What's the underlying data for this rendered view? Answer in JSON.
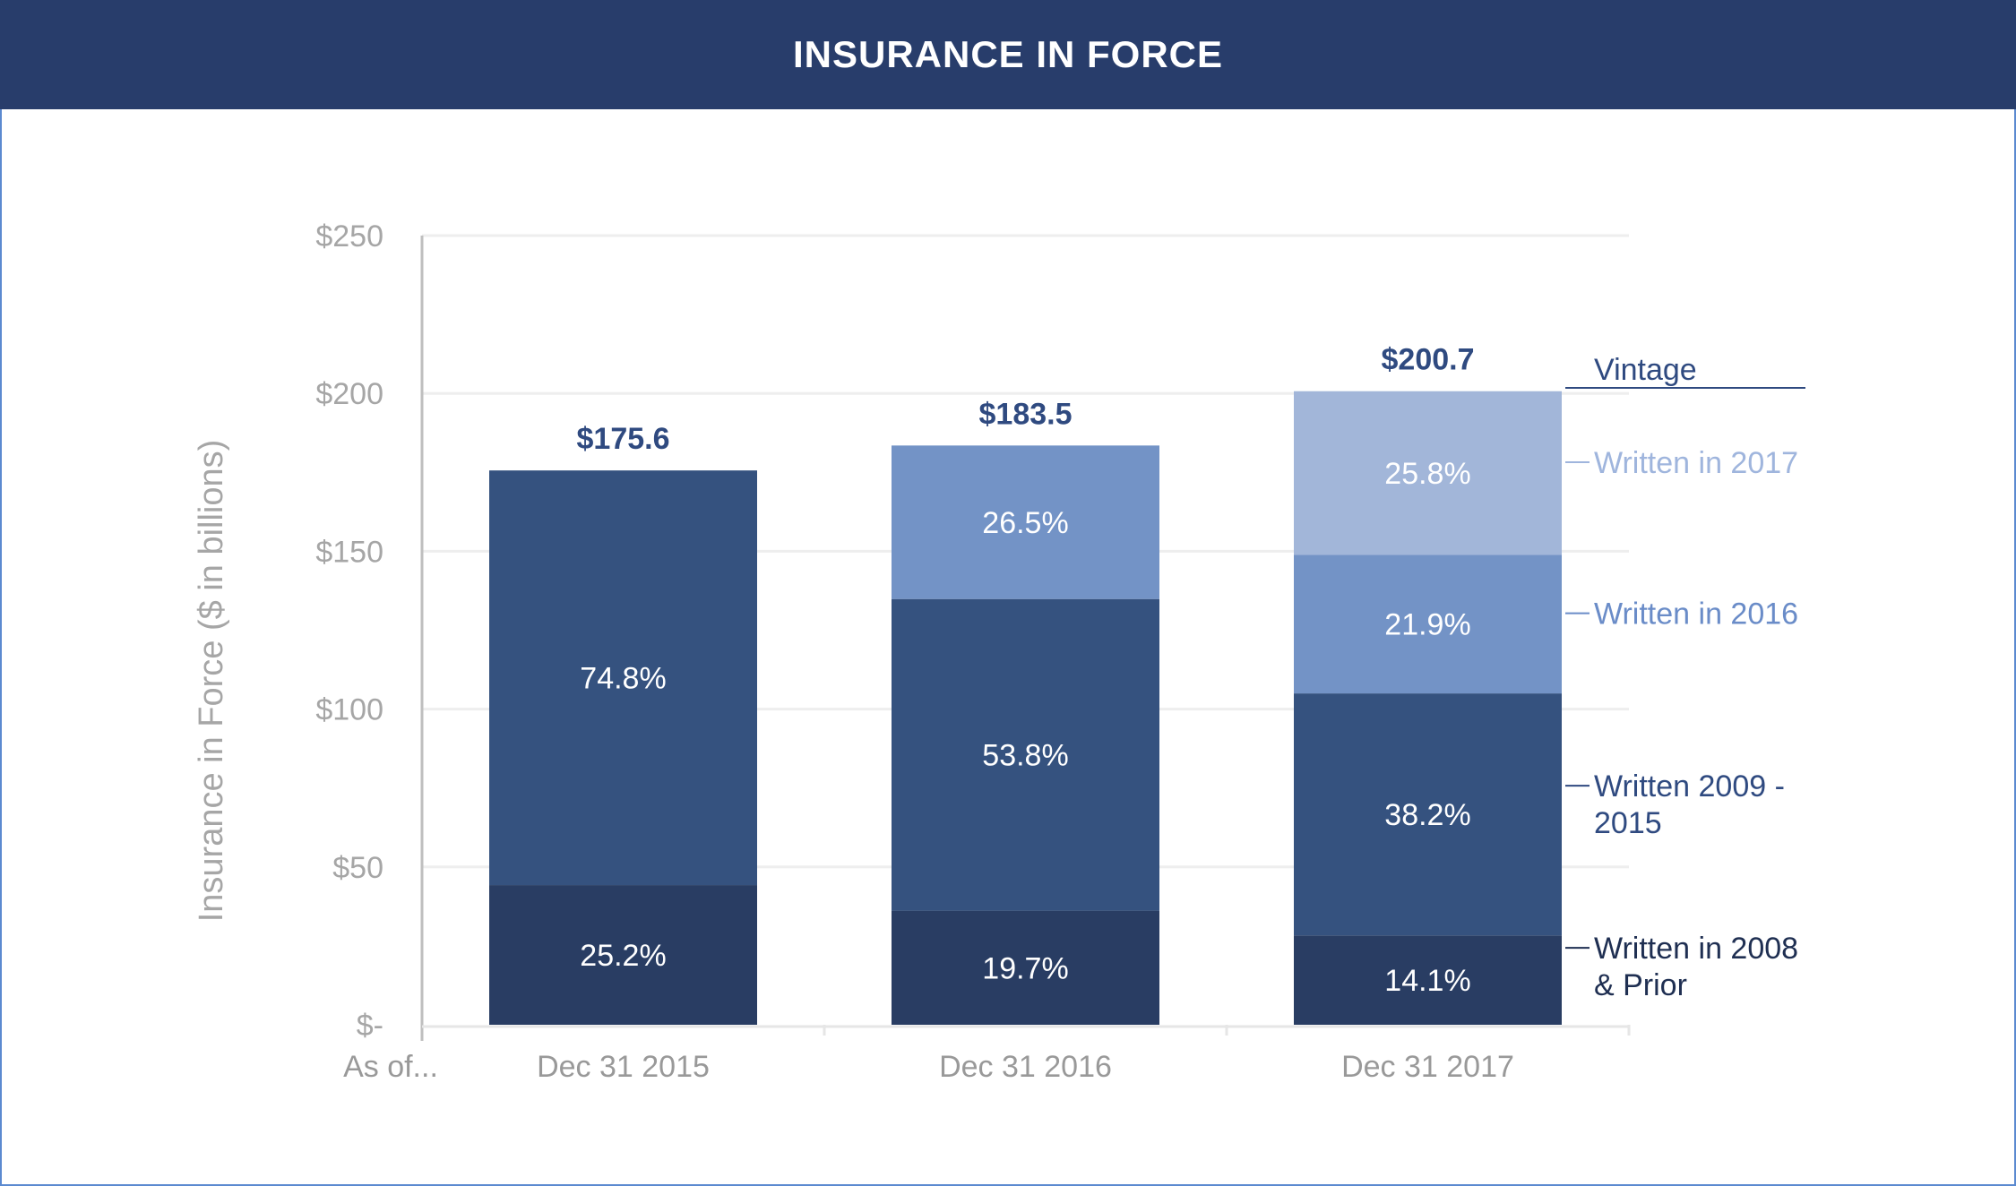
{
  "header": {
    "title": "INSURANCE IN FORCE"
  },
  "chart_data": {
    "type": "bar",
    "stacked": true,
    "title": "INSURANCE IN FORCE",
    "ylabel": "Insurance in Force ($ in billions)",
    "xlabel": "As of...",
    "ylim": [
      0,
      250
    ],
    "yticks": [
      0,
      50,
      100,
      150,
      200,
      250
    ],
    "ytick_labels": [
      "$-",
      "$50",
      "$100",
      "$150",
      "$200",
      "$250"
    ],
    "grid": true,
    "categories": [
      "Dec 31 2015",
      "Dec 31 2016",
      "Dec 31 2017"
    ],
    "totals": [
      175.6,
      183.5,
      200.7
    ],
    "total_labels": [
      "$175.6",
      "$183.5",
      "$200.7"
    ],
    "legend_title": "Vintage",
    "legend_placement": "right",
    "series": [
      {
        "name": "Written in 2008 & Prior",
        "legend_lines": [
          "Written in 2008",
          "& Prior"
        ],
        "color": "#293d63",
        "pct": [
          25.2,
          19.7,
          14.1
        ],
        "labels": [
          "25.2%",
          "19.7%",
          "14.1%"
        ]
      },
      {
        "name": "Written 2009 - 2015",
        "legend_lines": [
          "Written 2009 -",
          "2015"
        ],
        "color": "#35527f",
        "pct": [
          74.8,
          53.8,
          38.2
        ],
        "labels": [
          "74.8%",
          "53.8%",
          "38.2%"
        ]
      },
      {
        "name": "Written in 2016",
        "legend_lines": [
          "Written in 2016"
        ],
        "color": "#7393c6",
        "pct": [
          null,
          26.5,
          21.9
        ],
        "labels": [
          null,
          "26.5%",
          "21.9%"
        ]
      },
      {
        "name": "Written in 2017",
        "legend_lines": [
          "Written in 2017"
        ],
        "color": "#a2b6d9",
        "pct": [
          null,
          null,
          25.8
        ],
        "labels": [
          null,
          null,
          "25.8%"
        ]
      }
    ]
  }
}
